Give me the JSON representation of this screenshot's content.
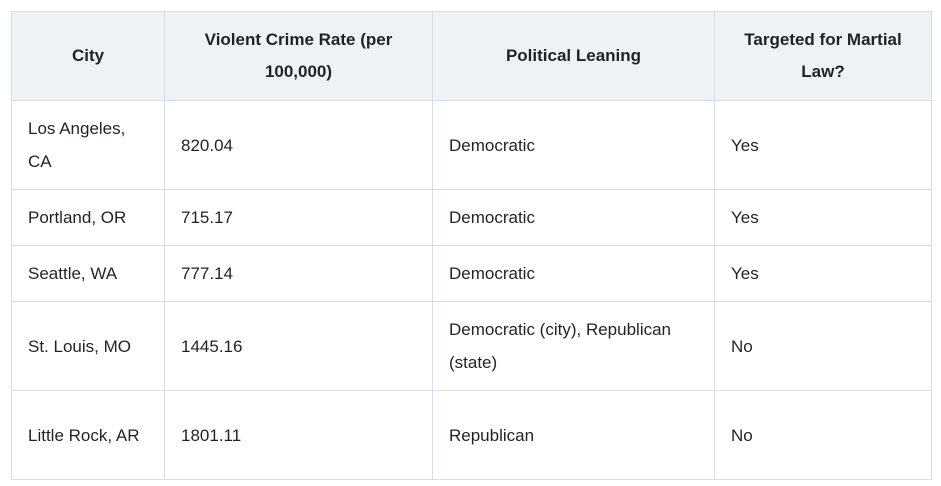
{
  "headers": [
    "City",
    "Violent Crime Rate (per 100,000)",
    "Political Leaning",
    "Targeted for Martial Law?"
  ],
  "rows": [
    [
      "Los Angeles, CA",
      "820.04",
      "Democratic",
      "Yes"
    ],
    [
      "Portland, OR",
      "715.17",
      "Democratic",
      "Yes"
    ],
    [
      "Seattle, WA",
      "777.14",
      "Democratic",
      "Yes"
    ],
    [
      "St. Louis, MO",
      "1445.16",
      "Democratic (city), Republican (state)",
      "No"
    ],
    [
      "Little Rock, AR",
      "1801.11",
      "Republican",
      "No"
    ]
  ]
}
